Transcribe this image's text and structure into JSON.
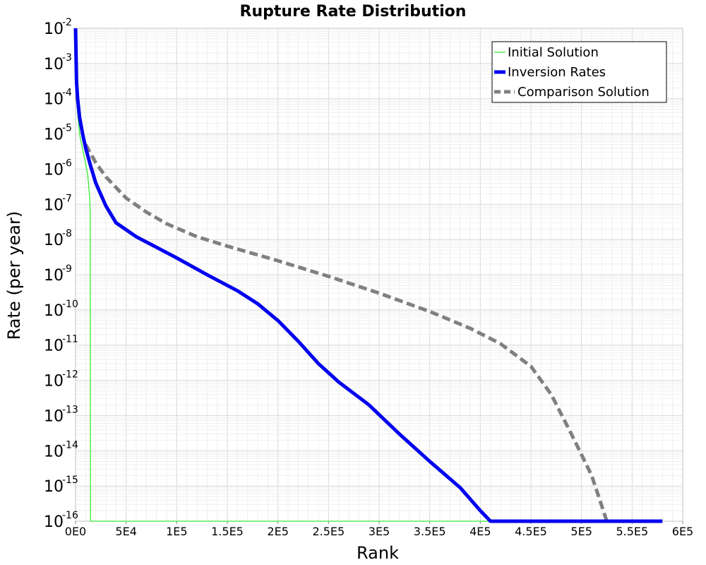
{
  "chart_data": {
    "type": "line",
    "title": "Rupture Rate Distribution",
    "xlabel": "Rank",
    "ylabel": "Rate (per year)",
    "xlim": [
      0,
      600000
    ],
    "ylim": [
      1e-16,
      0.01
    ],
    "y_scale": "log",
    "grid": true,
    "legend_position": "top-right",
    "x_ticks": [
      {
        "value": 0,
        "label": "0E0"
      },
      {
        "value": 50000,
        "label": "5E4"
      },
      {
        "value": 100000,
        "label": "1E5"
      },
      {
        "value": 150000,
        "label": "1.5E5"
      },
      {
        "value": 200000,
        "label": "2E5"
      },
      {
        "value": 250000,
        "label": "2.5E5"
      },
      {
        "value": 300000,
        "label": "3E5"
      },
      {
        "value": 350000,
        "label": "3.5E5"
      },
      {
        "value": 400000,
        "label": "4E5"
      },
      {
        "value": 450000,
        "label": "4.5E5"
      },
      {
        "value": 500000,
        "label": "5E5"
      },
      {
        "value": 550000,
        "label": "5.5E5"
      },
      {
        "value": 600000,
        "label": "6E5"
      }
    ],
    "y_ticks": [
      {
        "value": 1e-16,
        "base": "10",
        "exp": "-16"
      },
      {
        "value": 1e-15,
        "base": "10",
        "exp": "-15"
      },
      {
        "value": 1e-14,
        "base": "10",
        "exp": "-14"
      },
      {
        "value": 1e-13,
        "base": "10",
        "exp": "-13"
      },
      {
        "value": 1e-12,
        "base": "10",
        "exp": "-12"
      },
      {
        "value": 1e-11,
        "base": "10",
        "exp": "-11"
      },
      {
        "value": 1e-10,
        "base": "10",
        "exp": "-10"
      },
      {
        "value": 1e-09,
        "base": "10",
        "exp": "-9"
      },
      {
        "value": 1e-08,
        "base": "10",
        "exp": "-8"
      },
      {
        "value": 1e-07,
        "base": "10",
        "exp": "-7"
      },
      {
        "value": 1e-06,
        "base": "10",
        "exp": "-6"
      },
      {
        "value": 1e-05,
        "base": "10",
        "exp": "-5"
      },
      {
        "value": 0.0001,
        "base": "10",
        "exp": "-4"
      },
      {
        "value": 0.001,
        "base": "10",
        "exp": "-3"
      },
      {
        "value": 0.01,
        "base": "10",
        "exp": "-2"
      }
    ],
    "series": [
      {
        "name": "Initial Solution",
        "color": "#33ee33",
        "style": "solid",
        "width": "thin",
        "points": [
          [
            0,
            0.0008
          ],
          [
            1000,
            0.0001
          ],
          [
            2000,
            4e-05
          ],
          [
            4000,
            1e-05
          ],
          [
            6000,
            5e-06
          ],
          [
            9000,
            2e-06
          ],
          [
            12000,
            7e-07
          ],
          [
            14000,
            1.5e-07
          ],
          [
            14500,
            5e-08
          ],
          [
            14800,
            1e-16
          ],
          [
            580000,
            1e-16
          ]
        ]
      },
      {
        "name": "Inversion Rates",
        "color": "#0000ee",
        "style": "solid",
        "width": "thick",
        "points": [
          [
            0,
            0.01
          ],
          [
            1000,
            0.0003
          ],
          [
            2000,
            0.0001
          ],
          [
            4000,
            3e-05
          ],
          [
            7000,
            1e-05
          ],
          [
            10000,
            4e-06
          ],
          [
            15000,
            1.2e-06
          ],
          [
            20000,
            4e-07
          ],
          [
            30000,
            9e-08
          ],
          [
            40000,
            3e-08
          ],
          [
            60000,
            1.2e-08
          ],
          [
            80000,
            6e-09
          ],
          [
            100000,
            3e-09
          ],
          [
            130000,
            1e-09
          ],
          [
            160000,
            3.5e-10
          ],
          [
            180000,
            1.5e-10
          ],
          [
            200000,
            5e-11
          ],
          [
            220000,
            1.3e-11
          ],
          [
            240000,
            3e-12
          ],
          [
            260000,
            9e-13
          ],
          [
            290000,
            2e-13
          ],
          [
            320000,
            3e-14
          ],
          [
            350000,
            5e-15
          ],
          [
            380000,
            9e-16
          ],
          [
            400000,
            2e-16
          ],
          [
            410000,
            1e-16
          ],
          [
            580000,
            1e-16
          ]
        ]
      },
      {
        "name": "Comparison Solution",
        "color": "#808080",
        "style": "dashed",
        "width": "thick",
        "points": [
          [
            10000,
            5e-06
          ],
          [
            20000,
            1.5e-06
          ],
          [
            30000,
            6e-07
          ],
          [
            50000,
            1.5e-07
          ],
          [
            70000,
            6e-08
          ],
          [
            90000,
            2.8e-08
          ],
          [
            120000,
            1.2e-08
          ],
          [
            150000,
            6.5e-09
          ],
          [
            200000,
            2.5e-09
          ],
          [
            250000,
            9e-10
          ],
          [
            300000,
            3e-10
          ],
          [
            350000,
            9e-11
          ],
          [
            390000,
            3e-11
          ],
          [
            420000,
            1.1e-11
          ],
          [
            450000,
            2.5e-12
          ],
          [
            470000,
            4e-13
          ],
          [
            490000,
            3e-14
          ],
          [
            510000,
            2e-15
          ],
          [
            525000,
            1e-16
          ]
        ]
      }
    ]
  }
}
